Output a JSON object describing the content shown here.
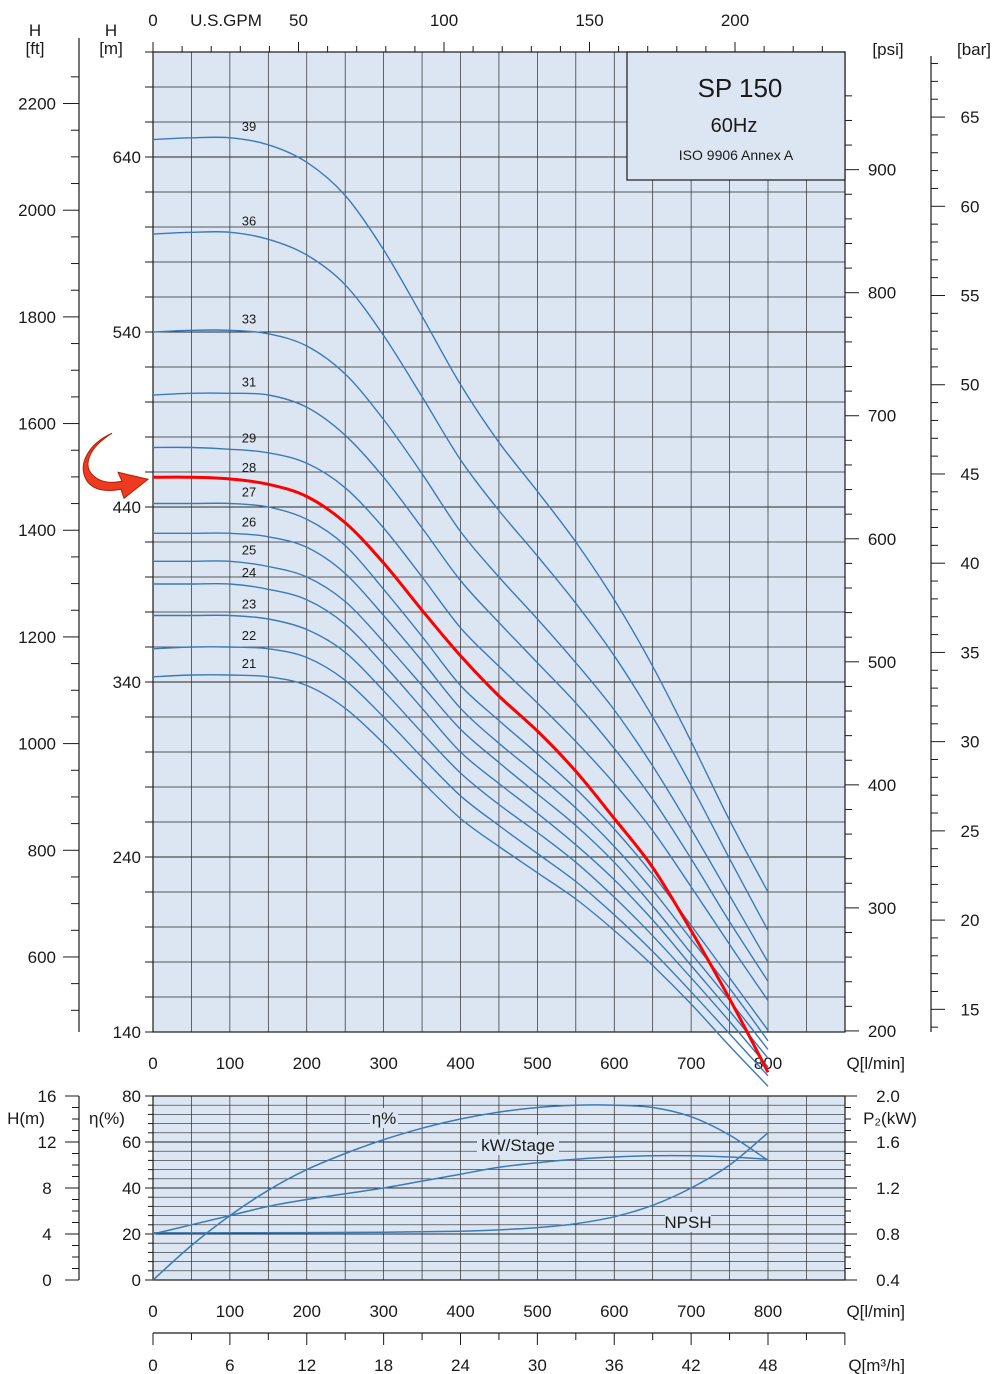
{
  "chart_data": [
    {
      "type": "line",
      "title": "SP 150",
      "subtitle": "60Hz",
      "standard": "ISO 9906 Annex A",
      "x_axis": {
        "label": "Q[l/min]",
        "ticks": [
          0,
          100,
          200,
          300,
          400,
          500,
          600,
          700,
          800
        ],
        "xlim": [
          0,
          900
        ]
      },
      "top_axis": {
        "label": "U.S.GPM",
        "ticks": [
          0,
          50,
          100,
          150,
          200
        ]
      },
      "left_axis_ft": {
        "label_top": "H",
        "label_unit": "[ft]",
        "ticks": [
          600,
          800,
          1000,
          1200,
          1400,
          1600,
          1800,
          2000,
          2200
        ]
      },
      "left_axis_m": {
        "label_top": "H",
        "label_unit": "[m]",
        "ticks": [
          140,
          240,
          340,
          440,
          540,
          640
        ],
        "ylim": [
          140,
          700
        ]
      },
      "right_axis_psi": {
        "label": "[psi]",
        "ticks": [
          200,
          300,
          400,
          500,
          600,
          700,
          800,
          900
        ]
      },
      "right_axis_bar": {
        "label": "[bar]",
        "ticks": [
          15,
          20,
          25,
          30,
          35,
          40,
          45,
          50,
          55,
          60,
          65
        ]
      },
      "grid": true,
      "highlighted_stage": "28",
      "series": [
        {
          "name": "21",
          "x": [
            0,
            50,
            100,
            150,
            200,
            250,
            300,
            350,
            400,
            450,
            500,
            550,
            600,
            650,
            700,
            750,
            800
          ],
          "y": [
            343,
            344,
            344,
            343,
            338,
            325,
            305,
            283,
            262,
            246,
            231,
            216,
            198,
            178,
            156,
            132,
            109
          ]
        },
        {
          "name": "22",
          "x": [
            0,
            50,
            100,
            150,
            200,
            250,
            300,
            350,
            400,
            450,
            500,
            550,
            600,
            650,
            700,
            750,
            800
          ],
          "y": [
            359,
            360,
            360,
            359,
            354,
            341,
            320,
            297,
            275,
            258,
            242,
            226,
            207,
            186,
            163,
            139,
            115
          ]
        },
        {
          "name": "23",
          "x": [
            0,
            50,
            100,
            150,
            200,
            250,
            300,
            350,
            400,
            450,
            500,
            550,
            600,
            650,
            700,
            750,
            800
          ],
          "y": [
            378,
            378,
            378,
            376,
            370,
            357,
            335,
            311,
            288,
            270,
            254,
            237,
            217,
            195,
            171,
            146,
            120
          ]
        },
        {
          "name": "24",
          "x": [
            0,
            50,
            100,
            150,
            200,
            250,
            300,
            350,
            400,
            450,
            500,
            550,
            600,
            650,
            700,
            750,
            800
          ],
          "y": [
            396,
            396,
            396,
            393,
            387,
            373,
            350,
            325,
            300,
            282,
            265,
            247,
            227,
            204,
            178,
            152,
            125
          ]
        },
        {
          "name": "25",
          "x": [
            0,
            50,
            100,
            150,
            200,
            250,
            300,
            350,
            400,
            450,
            500,
            550,
            600,
            650,
            700,
            750,
            800
          ],
          "y": [
            409,
            409,
            409,
            406,
            400,
            386,
            363,
            338,
            313,
            294,
            276,
            258,
            237,
            212,
            185,
            158,
            130
          ]
        },
        {
          "name": "26",
          "x": [
            0,
            50,
            100,
            150,
            200,
            250,
            300,
            350,
            400,
            450,
            500,
            550,
            600,
            650,
            700,
            750,
            800
          ],
          "y": [
            425,
            425,
            425,
            423,
            417,
            402,
            378,
            352,
            325,
            305,
            287,
            268,
            246,
            221,
            193,
            165,
            135
          ]
        },
        {
          "name": "27",
          "x": [
            0,
            50,
            100,
            150,
            200,
            250,
            300,
            350,
            400,
            450,
            500,
            550,
            600,
            650,
            700,
            750,
            800
          ],
          "y": [
            442,
            442,
            442,
            440,
            433,
            418,
            393,
            366,
            338,
            318,
            299,
            279,
            256,
            230,
            201,
            171,
            141
          ]
        },
        {
          "name": "28",
          "x": [
            0,
            50,
            100,
            150,
            200,
            250,
            300,
            350,
            400,
            450,
            500,
            550,
            600,
            650,
            700,
            750,
            800
          ],
          "y": [
            457,
            457,
            456,
            453,
            446,
            431,
            408,
            381,
            355,
            332,
            312,
            289,
            262,
            234,
            198,
            159,
            117
          ]
        },
        {
          "name": "29",
          "x": [
            0,
            50,
            100,
            150,
            200,
            250,
            300,
            350,
            400,
            450,
            500,
            550,
            600,
            650,
            700,
            750,
            800
          ],
          "y": [
            474,
            474,
            473,
            471,
            465,
            451,
            428,
            400,
            371,
            349,
            328,
            306,
            282,
            255,
            223,
            190,
            158
          ]
        },
        {
          "name": "31",
          "x": [
            0,
            50,
            100,
            150,
            200,
            250,
            300,
            350,
            400,
            450,
            500,
            550,
            600,
            650,
            700,
            750,
            800
          ],
          "y": [
            504,
            505,
            505,
            504,
            497,
            481,
            457,
            428,
            398,
            374,
            351,
            328,
            302,
            273,
            239,
            203,
            169
          ]
        },
        {
          "name": "33",
          "x": [
            0,
            50,
            100,
            150,
            200,
            250,
            300,
            350,
            400,
            450,
            500,
            550,
            600,
            650,
            700,
            750,
            800
          ],
          "y": [
            540,
            541,
            541,
            539,
            532,
            516,
            490,
            459,
            426,
            400,
            376,
            351,
            324,
            292,
            256,
            218,
            180
          ]
        },
        {
          "name": "36",
          "x": [
            0,
            50,
            100,
            150,
            200,
            250,
            300,
            350,
            400,
            450,
            500,
            550,
            600,
            650,
            700,
            750,
            800
          ],
          "y": [
            596,
            597,
            597,
            593,
            584,
            567,
            538,
            503,
            467,
            438,
            412,
            385,
            355,
            320,
            281,
            239,
            198
          ]
        },
        {
          "name": "39",
          "x": [
            0,
            50,
            100,
            150,
            200,
            250,
            300,
            350,
            400,
            450,
            500,
            550,
            600,
            650,
            700,
            750,
            800
          ],
          "y": [
            650,
            651,
            651,
            647,
            637,
            618,
            587,
            549,
            510,
            477,
            449,
            420,
            387,
            349,
            306,
            261,
            220
          ]
        }
      ]
    },
    {
      "type": "line",
      "x_axis": {
        "label": "Q[l/min]",
        "ticks": [
          0,
          100,
          200,
          300,
          400,
          500,
          600,
          700,
          800
        ]
      },
      "x2_axis": {
        "label": "Q[m³/h]",
        "ticks": [
          0,
          6,
          12,
          18,
          24,
          30,
          36,
          42,
          48
        ]
      },
      "left_axis_h": {
        "label": "H(m)",
        "ticks": [
          0,
          4,
          8,
          12,
          16
        ]
      },
      "left_axis_eta": {
        "label": "η(%)",
        "ticks": [
          0,
          20,
          40,
          60,
          80
        ],
        "ylim": [
          0,
          80
        ]
      },
      "right_axis_p": {
        "label": "P₂(kW)",
        "ticks": [
          "0.4",
          "0.8",
          "1.2",
          "1.6",
          "2.0"
        ]
      },
      "grid": true,
      "series": [
        {
          "name": "η%",
          "x": [
            0,
            50,
            100,
            150,
            200,
            250,
            300,
            350,
            400,
            450,
            500,
            550,
            600,
            650,
            700,
            750,
            800
          ],
          "y": [
            0,
            15,
            28,
            39,
            48,
            55,
            61,
            66,
            70,
            73,
            75,
            76,
            76,
            75,
            71,
            63,
            52
          ]
        },
        {
          "name": "kW/Stage",
          "x": [
            0,
            50,
            100,
            150,
            200,
            250,
            300,
            350,
            400,
            450,
            500,
            550,
            600,
            650,
            700,
            750,
            800
          ],
          "y": [
            20,
            24,
            28,
            32,
            35,
            37.5,
            40,
            43,
            46,
            49,
            51,
            52.5,
            53.5,
            54,
            54,
            53.5,
            52.5
          ]
        },
        {
          "name": "NPSH",
          "x": [
            0,
            100,
            200,
            300,
            400,
            450,
            500,
            550,
            600,
            650,
            700,
            750,
            800
          ],
          "y": [
            20.5,
            20.5,
            20.6,
            20.8,
            21.2,
            21.8,
            22.8,
            24.5,
            27.5,
            32.5,
            40,
            50,
            64
          ]
        }
      ]
    }
  ]
}
